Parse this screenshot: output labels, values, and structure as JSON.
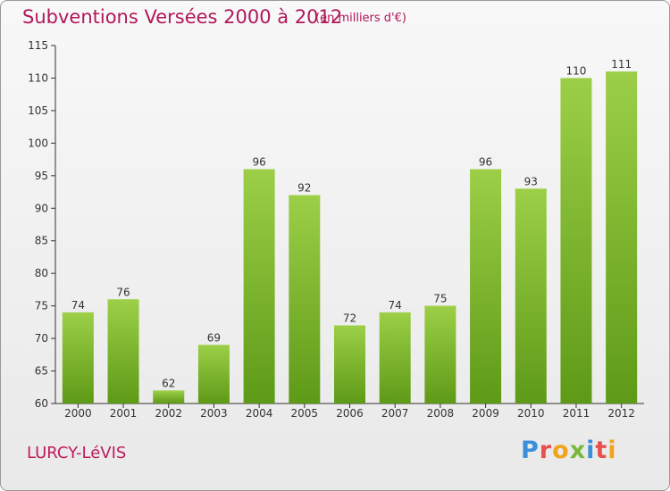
{
  "header": {
    "title": "Subventions Versées 2000 à 2012",
    "subtitle": "(en milliers d'€)"
  },
  "footer": {
    "commune": "LURCY-LéVIS",
    "logo_letters": [
      "P",
      "r",
      "o",
      "x",
      "i",
      "t",
      "i"
    ]
  },
  "chart_data": {
    "type": "bar",
    "categories": [
      "2000",
      "2001",
      "2002",
      "2003",
      "2004",
      "2005",
      "2006",
      "2007",
      "2008",
      "2009",
      "2010",
      "2011",
      "2012"
    ],
    "values": [
      74,
      76,
      62,
      69,
      96,
      92,
      72,
      74,
      75,
      96,
      93,
      110,
      111
    ],
    "title": "Subventions Versées 2000 à 2012",
    "subtitle": "(en milliers d'€)",
    "ylim": [
      60,
      115
    ],
    "yticks": [
      60,
      65,
      70,
      75,
      80,
      85,
      90,
      95,
      100,
      105,
      110,
      115
    ],
    "grid": false,
    "colors": {
      "bar_light": "#9ccf47",
      "bar_dark": "#5e9a17",
      "axis": "#333333"
    }
  }
}
